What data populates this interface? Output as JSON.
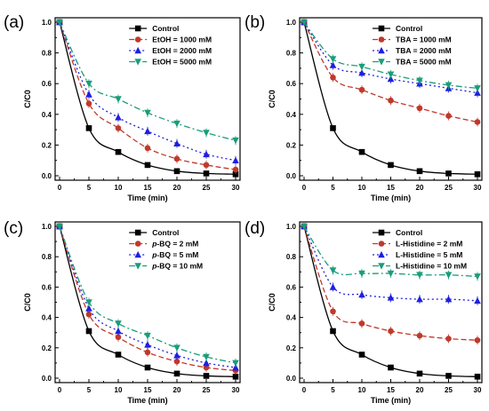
{
  "chart_data": [
    {
      "panel_label": "(a)",
      "type": "line",
      "xlabel": "Time (min)",
      "ylabel": "C/C0",
      "xlim": [
        0,
        30
      ],
      "ylim": [
        0,
        1.0
      ],
      "xticks": [
        "0",
        "5",
        "10",
        "15",
        "20",
        "25",
        "30"
      ],
      "yticks": [
        "0.0",
        "0.2",
        "0.4",
        "0.6",
        "0.8",
        "1.0"
      ],
      "legend_position": "top-right",
      "x": [
        0,
        5,
        10,
        15,
        20,
        25,
        30
      ],
      "series": [
        {
          "name": "Control",
          "values": [
            1.0,
            0.31,
            0.155,
            0.07,
            0.03,
            0.015,
            0.01
          ],
          "color": "#000000",
          "marker": "square"
        },
        {
          "name": "EtOH = 1000 mM",
          "values": [
            1.0,
            0.47,
            0.31,
            0.18,
            0.11,
            0.07,
            0.04
          ],
          "color": "#c0392b",
          "marker": "circle"
        },
        {
          "name": "EtOH = 2000 mM",
          "values": [
            1.0,
            0.53,
            0.38,
            0.29,
            0.21,
            0.14,
            0.1
          ],
          "color": "#1f1fe0",
          "marker": "triangle-up"
        },
        {
          "name": "EtOH = 5000 mM",
          "values": [
            1.0,
            0.6,
            0.5,
            0.41,
            0.34,
            0.28,
            0.23
          ],
          "color": "#1a9d7a",
          "marker": "triangle-down"
        }
      ]
    },
    {
      "panel_label": "(b)",
      "type": "line",
      "xlabel": "Time (min)",
      "ylabel": "C/C0",
      "xlim": [
        0,
        30
      ],
      "ylim": [
        0,
        1.0
      ],
      "xticks": [
        "0",
        "5",
        "10",
        "15",
        "20",
        "25",
        "30"
      ],
      "yticks": [
        "0.0",
        "0.2",
        "0.4",
        "0.6",
        "0.8",
        "1.0"
      ],
      "legend_position": "top-right",
      "x": [
        0,
        5,
        10,
        15,
        20,
        25,
        30
      ],
      "series": [
        {
          "name": "Control",
          "values": [
            1.0,
            0.31,
            0.155,
            0.07,
            0.03,
            0.015,
            0.01
          ],
          "color": "#000000",
          "marker": "square"
        },
        {
          "name": "TBA = 1000 mM",
          "values": [
            1.0,
            0.64,
            0.56,
            0.49,
            0.44,
            0.39,
            0.35
          ],
          "color": "#c0392b",
          "marker": "circle"
        },
        {
          "name": "TBA = 2000 mM",
          "values": [
            1.0,
            0.72,
            0.67,
            0.63,
            0.6,
            0.57,
            0.54
          ],
          "color": "#1f1fe0",
          "marker": "triangle-up"
        },
        {
          "name": "TBA = 5000 mM",
          "values": [
            1.0,
            0.76,
            0.71,
            0.66,
            0.62,
            0.59,
            0.57
          ],
          "color": "#1a9d7a",
          "marker": "triangle-down"
        }
      ]
    },
    {
      "panel_label": "(c)",
      "type": "line",
      "xlabel": "Time (min)",
      "ylabel": "C/C0",
      "xlim": [
        0,
        30
      ],
      "ylim": [
        0,
        1.0
      ],
      "xticks": [
        "0",
        "5",
        "10",
        "15",
        "20",
        "25",
        "30"
      ],
      "yticks": [
        "0.0",
        "0.2",
        "0.4",
        "0.6",
        "0.8",
        "1.0"
      ],
      "legend_position": "top-right",
      "x": [
        0,
        5,
        10,
        15,
        20,
        25,
        30
      ],
      "series": [
        {
          "name": "Control",
          "values": [
            1.0,
            0.31,
            0.155,
            0.07,
            0.03,
            0.015,
            0.01
          ],
          "color": "#000000",
          "marker": "square"
        },
        {
          "name_prefix": "p",
          "name": "-BQ = 2 mM",
          "values": [
            1.0,
            0.42,
            0.27,
            0.17,
            0.11,
            0.07,
            0.05
          ],
          "color": "#c0392b",
          "marker": "circle"
        },
        {
          "name_prefix": "p",
          "name": "-BQ = 5 mM",
          "values": [
            1.0,
            0.46,
            0.31,
            0.22,
            0.15,
            0.1,
            0.07
          ],
          "color": "#1f1fe0",
          "marker": "triangle-up"
        },
        {
          "name_prefix": "p",
          "name": "-BQ = 10 mM",
          "values": [
            1.0,
            0.5,
            0.36,
            0.28,
            0.2,
            0.14,
            0.1
          ],
          "color": "#1a9d7a",
          "marker": "triangle-down"
        }
      ]
    },
    {
      "panel_label": "(d)",
      "type": "line",
      "xlabel": "Time (min)",
      "ylabel": "C/C0",
      "xlim": [
        0,
        30
      ],
      "ylim": [
        0,
        1.0
      ],
      "xticks": [
        "0",
        "5",
        "10",
        "15",
        "20",
        "25",
        "30"
      ],
      "yticks": [
        "0.0",
        "0.2",
        "0.4",
        "0.6",
        "0.8",
        "1.0"
      ],
      "legend_position": "top-right",
      "x": [
        0,
        5,
        10,
        15,
        20,
        25,
        30
      ],
      "series": [
        {
          "name": "Control",
          "values": [
            1.0,
            0.31,
            0.155,
            0.07,
            0.03,
            0.015,
            0.01
          ],
          "color": "#000000",
          "marker": "square"
        },
        {
          "name": "L-Histidine = 2 mM",
          "values": [
            1.0,
            0.44,
            0.36,
            0.31,
            0.28,
            0.26,
            0.25
          ],
          "color": "#c0392b",
          "marker": "circle"
        },
        {
          "name": "L-Histidine = 5 mM",
          "values": [
            1.0,
            0.6,
            0.55,
            0.53,
            0.52,
            0.52,
            0.51
          ],
          "color": "#1f1fe0",
          "marker": "triangle-up"
        },
        {
          "name": "L-Histidine = 10 mM",
          "values": [
            1.0,
            0.71,
            0.69,
            0.69,
            0.68,
            0.68,
            0.67
          ],
          "color": "#1a9d7a",
          "marker": "triangle-down"
        }
      ]
    }
  ]
}
